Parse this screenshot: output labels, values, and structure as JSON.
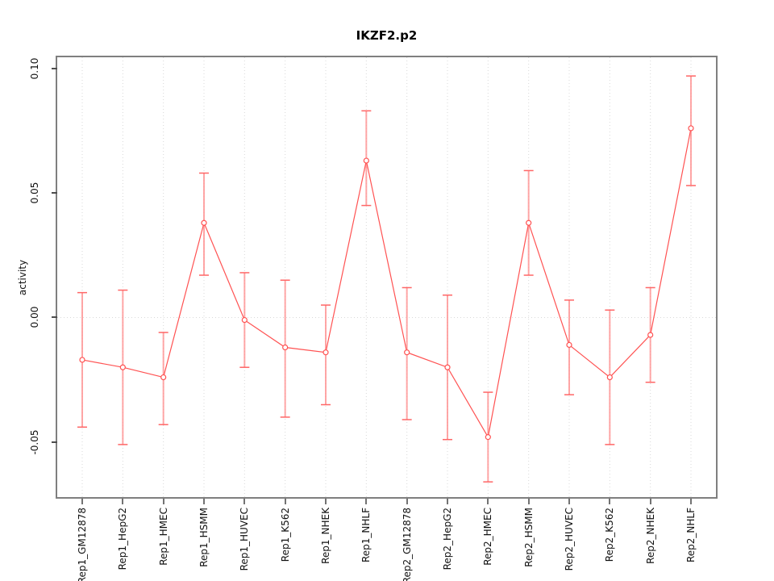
{
  "figure": {
    "background": "#ffffff"
  },
  "chart_data": {
    "type": "line",
    "title": "IKZF2.p2",
    "xlabel": "",
    "ylabel": "activity",
    "legend": "none",
    "grid": "dotted vertical line at each category; dotted horizontal line at y=0",
    "marker": "open-circle",
    "error_bars": true,
    "categories": [
      "Rep1_GM12878",
      "Rep1_HepG2",
      "Rep1_HMEC",
      "Rep1_HSMM",
      "Rep1_HUVEC",
      "Rep1_K562",
      "Rep1_NHEK",
      "Rep1_NHLF",
      "Rep2_GM12878",
      "Rep2_HepG2",
      "Rep2_HMEC",
      "Rep2_HSMM",
      "Rep2_HUVEC",
      "Rep2_K562",
      "Rep2_NHEK",
      "Rep2_NHLF"
    ],
    "series": [
      {
        "name": "activity",
        "values": [
          -0.017,
          -0.02,
          -0.024,
          0.038,
          -0.001,
          -0.012,
          -0.014,
          0.063,
          -0.014,
          -0.02,
          -0.048,
          0.038,
          -0.011,
          -0.024,
          -0.007,
          0.076
        ],
        "upper": [
          0.01,
          0.011,
          -0.006,
          0.058,
          0.018,
          0.015,
          0.005,
          0.083,
          0.012,
          0.009,
          -0.03,
          0.059,
          0.007,
          0.003,
          0.012,
          0.097
        ],
        "lower": [
          -0.044,
          -0.051,
          -0.043,
          0.017,
          -0.02,
          -0.04,
          -0.035,
          0.045,
          -0.041,
          -0.049,
          -0.066,
          0.017,
          -0.031,
          -0.051,
          -0.026,
          0.053
        ]
      }
    ],
    "y_ticks": [
      -0.05,
      0.0,
      0.05,
      0.1
    ],
    "y_tick_labels": [
      "-0.05",
      "0.00",
      "0.05",
      "0.10"
    ],
    "ylim": [
      -0.0721,
      0.1045
    ],
    "colors": {
      "line": "#ff5252",
      "marker_stroke": "#ff5252",
      "error_bar_line": "#ff9090",
      "error_bar_cap": "#ff6666",
      "gridline": "#d9d9d9",
      "zero_line": "#d9d9d9",
      "frame": "#7f7f7f",
      "tick": "#4d4d4d",
      "text": "#111111"
    }
  }
}
